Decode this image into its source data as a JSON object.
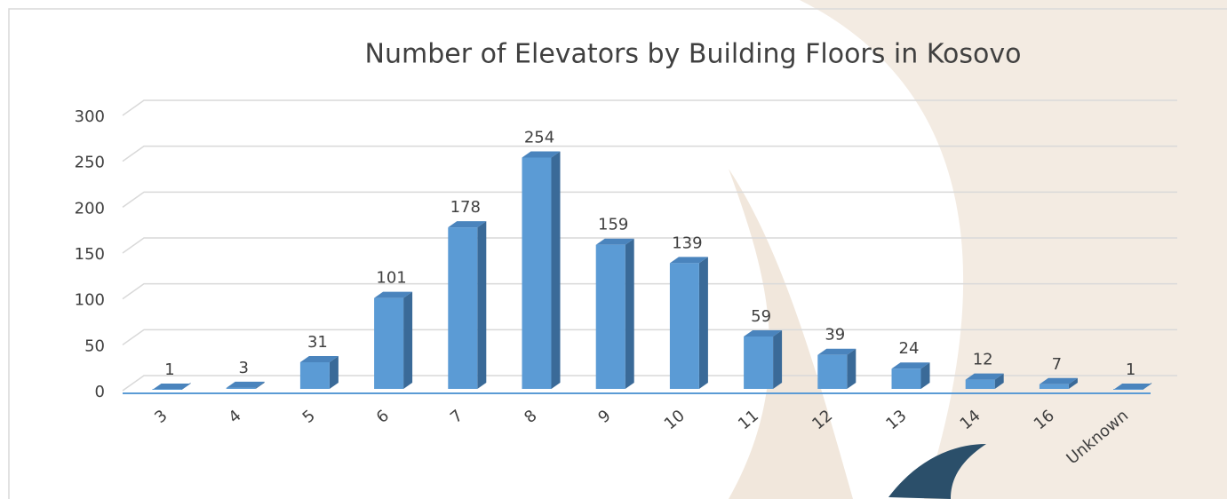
{
  "chart_data": {
    "type": "bar3d",
    "title": "Number of Elevators by Building Floors in Kosovo",
    "categories": [
      "3",
      "4",
      "5",
      "6",
      "7",
      "8",
      "9",
      "10",
      "11",
      "12",
      "13",
      "14",
      "16",
      "Unknown"
    ],
    "values": [
      1,
      3,
      31,
      101,
      178,
      254,
      159,
      139,
      59,
      39,
      24,
      12,
      7,
      1
    ],
    "color": "#5b9bd5",
    "ylim": [
      0,
      300
    ],
    "yticks": [
      0,
      50,
      100,
      150,
      200,
      250,
      300
    ],
    "grid": true
  }
}
